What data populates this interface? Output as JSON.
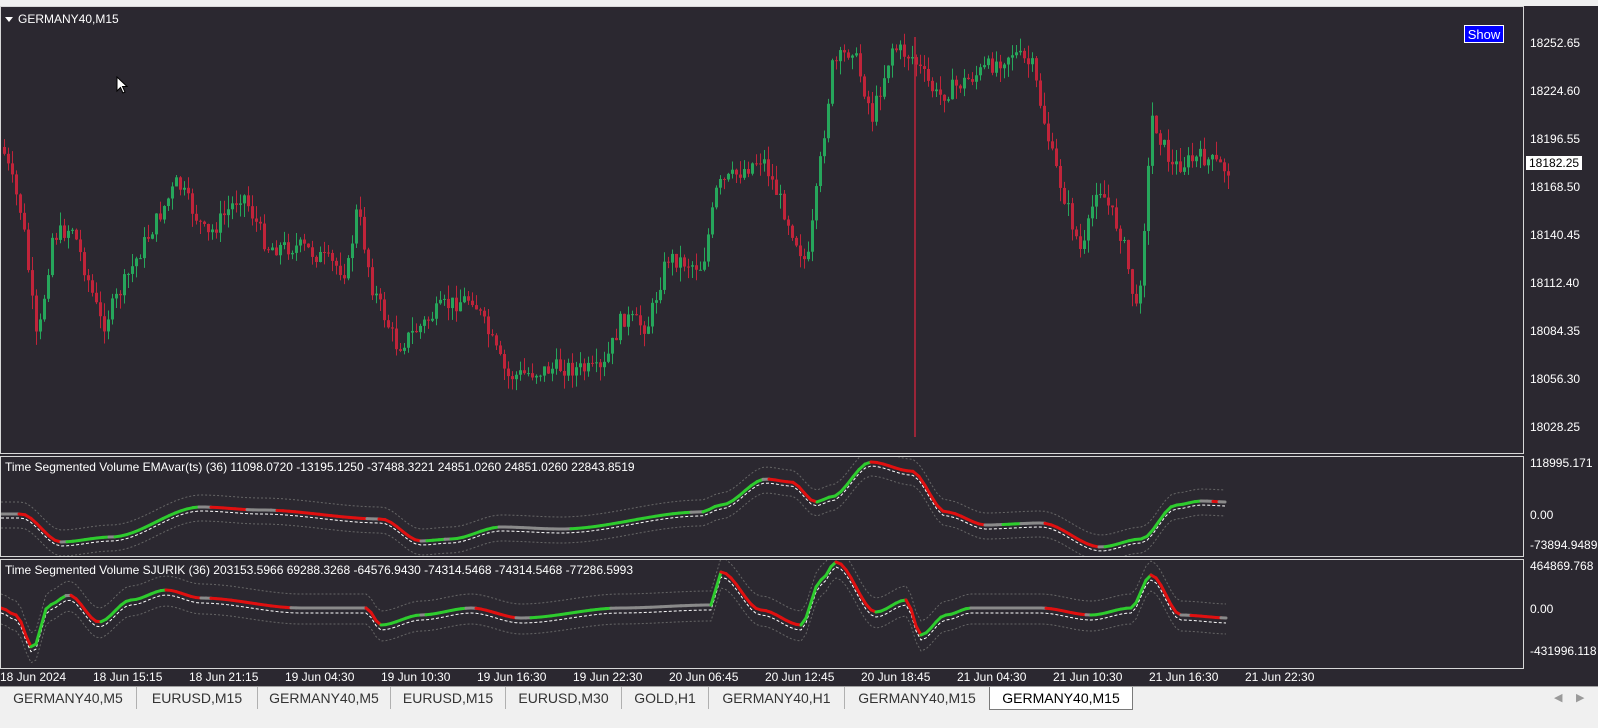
{
  "chart": {
    "symbol_title": "GERMANY40,M15",
    "show_button": "Show",
    "price_levels": [
      "18252.65",
      "18224.60",
      "18196.55",
      "18168.50",
      "18140.45",
      "18112.40",
      "18084.35",
      "18056.30",
      "18028.25"
    ],
    "current_price": "18182.25",
    "colors": {
      "background": "#2b2830",
      "bull": "#26a65b",
      "bear": "#c0243a",
      "up_line": "#2ecc2e",
      "down_line": "#e01010",
      "neutral_line": "#8a8a8a"
    }
  },
  "indicator1": {
    "title": "Time Segmented Volume EMAvar(ts) (36) 11098.0720 -13195.1250 -37488.3221 24851.0260 24851.0260 22843.8519",
    "levels": [
      "118995.171",
      "0.00",
      "-73894.9489"
    ]
  },
  "indicator2": {
    "title": "Time Segmented Volume  SJURIK (36) 203153.5966 69288.3268 -64576.9430 -74314.5468 -74314.5468 -77286.5993",
    "levels": [
      "464869.768",
      "0.00",
      "-431996.118"
    ]
  },
  "time_axis": {
    "labels": [
      "18 Jun 2024",
      "18 Jun 15:15",
      "18 Jun 21:15",
      "19 Jun 04:30",
      "19 Jun 10:30",
      "19 Jun 16:30",
      "19 Jun 22:30",
      "20 Jun 06:45",
      "20 Jun 12:45",
      "20 Jun 18:45",
      "21 Jun 04:30",
      "21 Jun 10:30",
      "21 Jun 16:30",
      "21 Jun 22:30"
    ]
  },
  "tabs": [
    {
      "label": "GERMANY40,M5",
      "active": false
    },
    {
      "label": "EURUSD,M15",
      "active": false
    },
    {
      "label": "GERMANY40,M5",
      "active": false
    },
    {
      "label": "EURUSD,M15",
      "active": false
    },
    {
      "label": "EURUSD,M30",
      "active": false
    },
    {
      "label": "GOLD,H1",
      "active": false
    },
    {
      "label": "GERMANY40,H1",
      "active": false
    },
    {
      "label": "GERMANY40,M15",
      "active": false
    },
    {
      "label": "GERMANY40,M15",
      "active": true
    }
  ],
  "scroll": {
    "left_icon": "arrow-left-icon",
    "right_icon": "arrow-right-icon"
  }
}
